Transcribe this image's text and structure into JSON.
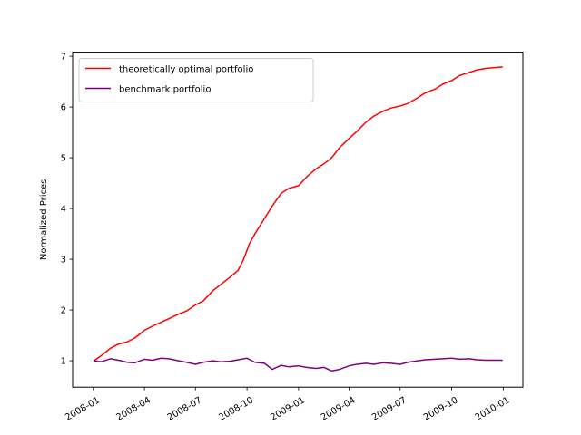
{
  "chart_data": {
    "type": "line",
    "title": "",
    "xlabel": "",
    "ylabel": "Normalized Prices",
    "xlim": [
      "2007-11-25",
      "2010-02-05"
    ],
    "ylim": [
      0.48,
      7.08
    ],
    "x_ticks": [
      "2008-01",
      "2008-04",
      "2008-07",
      "2008-10",
      "2009-01",
      "2009-04",
      "2009-07",
      "2009-10",
      "2010-01"
    ],
    "y_ticks": [
      1,
      2,
      3,
      4,
      5,
      6,
      7
    ],
    "grid": false,
    "legend_position": "top-left",
    "series": [
      {
        "name": "theoretically optimal portfolio",
        "color": "#ff0000",
        "points": [
          [
            "2008-01-02",
            1.0
          ],
          [
            "2008-01-15",
            1.1
          ],
          [
            "2008-02-01",
            1.25
          ],
          [
            "2008-02-15",
            1.33
          ],
          [
            "2008-03-01",
            1.37
          ],
          [
            "2008-03-15",
            1.45
          ],
          [
            "2008-04-01",
            1.6
          ],
          [
            "2008-04-15",
            1.68
          ],
          [
            "2008-05-01",
            1.76
          ],
          [
            "2008-05-15",
            1.83
          ],
          [
            "2008-06-01",
            1.92
          ],
          [
            "2008-06-15",
            1.98
          ],
          [
            "2008-07-01",
            2.1
          ],
          [
            "2008-07-15",
            2.18
          ],
          [
            "2008-08-01",
            2.38
          ],
          [
            "2008-08-15",
            2.5
          ],
          [
            "2008-09-01",
            2.65
          ],
          [
            "2008-09-15",
            2.78
          ],
          [
            "2008-09-25",
            3.0
          ],
          [
            "2008-10-05",
            3.3
          ],
          [
            "2008-10-15",
            3.5
          ],
          [
            "2008-11-01",
            3.8
          ],
          [
            "2008-11-15",
            4.05
          ],
          [
            "2008-12-01",
            4.3
          ],
          [
            "2008-12-15",
            4.4
          ],
          [
            "2009-01-01",
            4.45
          ],
          [
            "2009-01-15",
            4.62
          ],
          [
            "2009-02-01",
            4.78
          ],
          [
            "2009-02-15",
            4.88
          ],
          [
            "2009-03-01",
            5.0
          ],
          [
            "2009-03-15",
            5.2
          ],
          [
            "2009-04-01",
            5.38
          ],
          [
            "2009-04-15",
            5.52
          ],
          [
            "2009-05-01",
            5.7
          ],
          [
            "2009-05-15",
            5.82
          ],
          [
            "2009-06-01",
            5.92
          ],
          [
            "2009-06-15",
            5.98
          ],
          [
            "2009-07-01",
            6.02
          ],
          [
            "2009-07-15",
            6.07
          ],
          [
            "2009-08-01",
            6.18
          ],
          [
            "2009-08-15",
            6.28
          ],
          [
            "2009-09-01",
            6.35
          ],
          [
            "2009-09-15",
            6.45
          ],
          [
            "2009-10-01",
            6.52
          ],
          [
            "2009-10-15",
            6.62
          ],
          [
            "2009-11-01",
            6.68
          ],
          [
            "2009-11-15",
            6.73
          ],
          [
            "2009-12-01",
            6.76
          ],
          [
            "2009-12-31",
            6.79
          ]
        ]
      },
      {
        "name": "benchmark portfolio",
        "color": "#800080",
        "points": [
          [
            "2008-01-02",
            1.0
          ],
          [
            "2008-01-15",
            0.98
          ],
          [
            "2008-02-01",
            1.04
          ],
          [
            "2008-02-15",
            1.01
          ],
          [
            "2008-03-01",
            0.97
          ],
          [
            "2008-03-15",
            0.96
          ],
          [
            "2008-04-01",
            1.03
          ],
          [
            "2008-04-15",
            1.01
          ],
          [
            "2008-05-01",
            1.05
          ],
          [
            "2008-05-15",
            1.04
          ],
          [
            "2008-06-01",
            1.0
          ],
          [
            "2008-06-15",
            0.97
          ],
          [
            "2008-07-01",
            0.93
          ],
          [
            "2008-07-15",
            0.97
          ],
          [
            "2008-08-01",
            1.0
          ],
          [
            "2008-08-15",
            0.98
          ],
          [
            "2008-09-01",
            0.99
          ],
          [
            "2008-09-15",
            1.02
          ],
          [
            "2008-10-01",
            1.05
          ],
          [
            "2008-10-15",
            0.97
          ],
          [
            "2008-11-01",
            0.95
          ],
          [
            "2008-11-15",
            0.83
          ],
          [
            "2008-12-01",
            0.91
          ],
          [
            "2008-12-15",
            0.88
          ],
          [
            "2009-01-01",
            0.9
          ],
          [
            "2009-01-15",
            0.87
          ],
          [
            "2009-02-01",
            0.85
          ],
          [
            "2009-02-15",
            0.87
          ],
          [
            "2009-03-01",
            0.8
          ],
          [
            "2009-03-15",
            0.83
          ],
          [
            "2009-04-01",
            0.9
          ],
          [
            "2009-04-15",
            0.93
          ],
          [
            "2009-05-01",
            0.95
          ],
          [
            "2009-05-15",
            0.93
          ],
          [
            "2009-06-01",
            0.96
          ],
          [
            "2009-06-15",
            0.95
          ],
          [
            "2009-07-01",
            0.93
          ],
          [
            "2009-07-15",
            0.97
          ],
          [
            "2009-08-01",
            1.0
          ],
          [
            "2009-08-15",
            1.02
          ],
          [
            "2009-09-01",
            1.03
          ],
          [
            "2009-09-15",
            1.04
          ],
          [
            "2009-10-01",
            1.05
          ],
          [
            "2009-10-15",
            1.03
          ],
          [
            "2009-11-01",
            1.04
          ],
          [
            "2009-11-15",
            1.02
          ],
          [
            "2009-12-01",
            1.01
          ],
          [
            "2009-12-31",
            1.01
          ]
        ]
      }
    ]
  }
}
